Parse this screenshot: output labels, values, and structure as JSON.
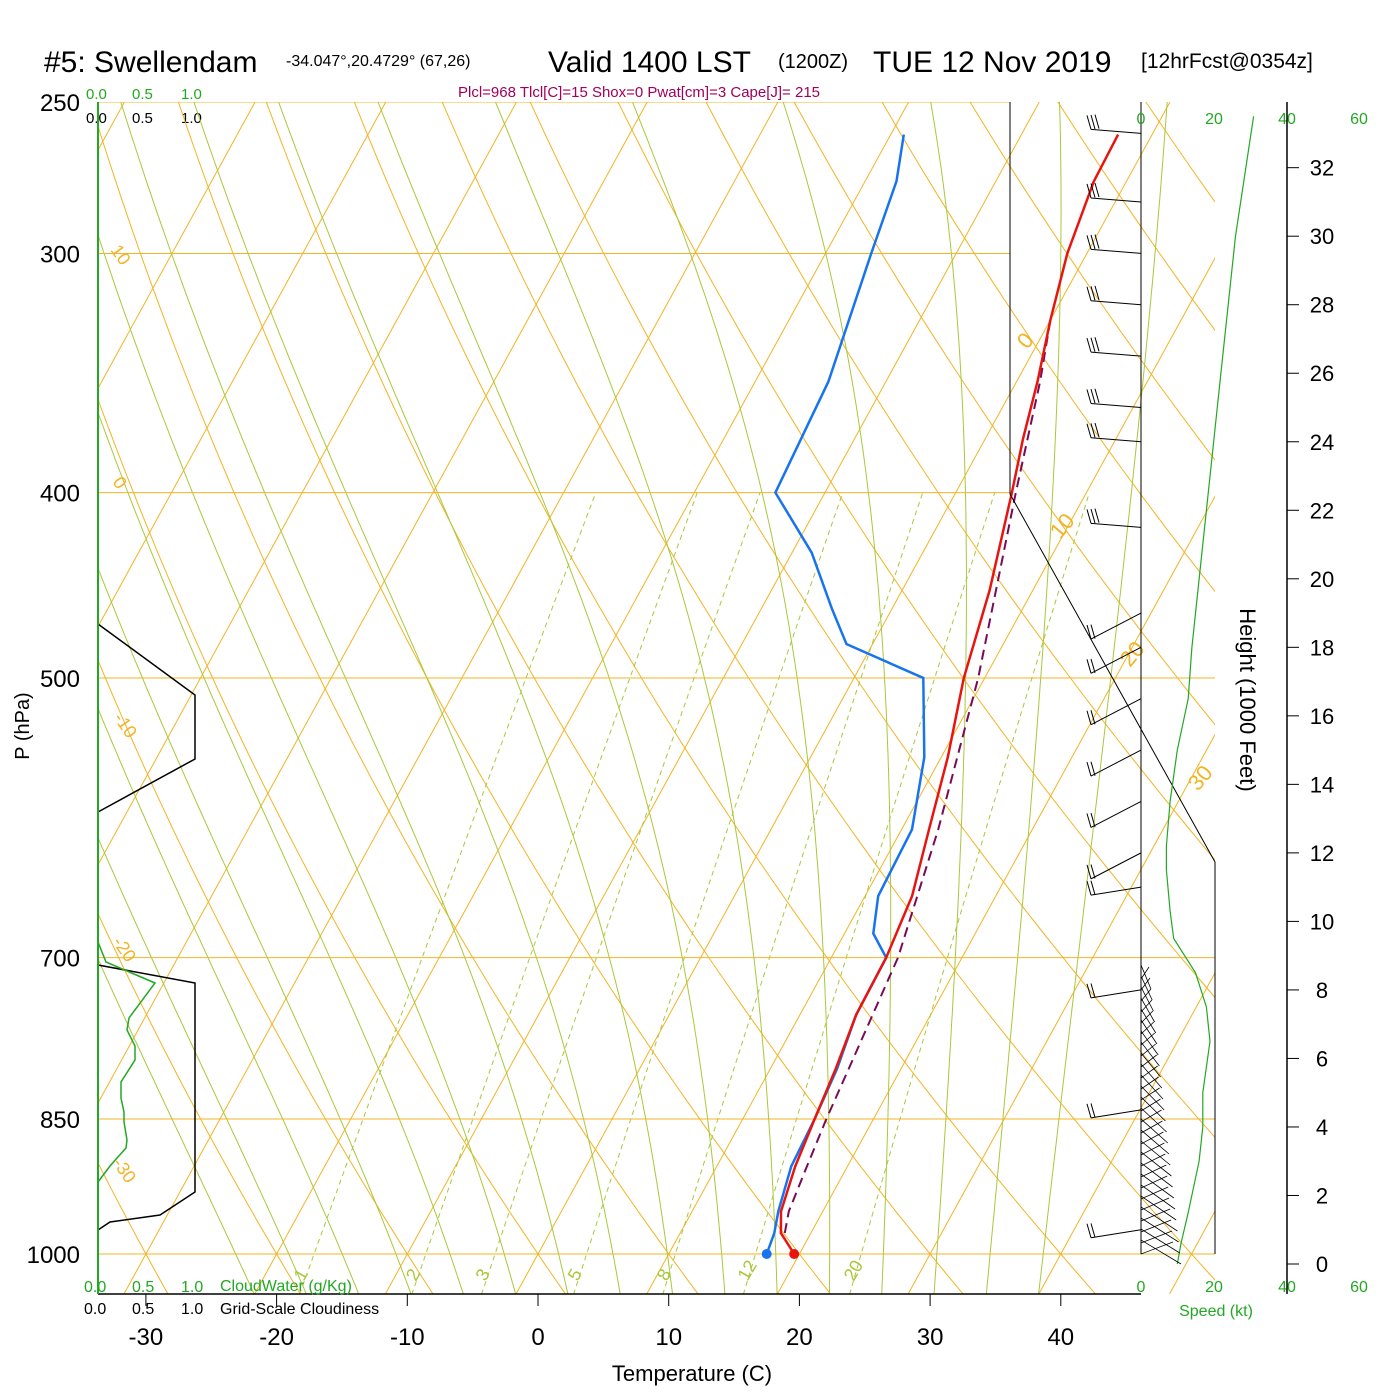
{
  "header": {
    "station": "#5: Swellendam",
    "coords": "-34.047°,20.4729° (67,26)",
    "valid": "Valid 1400 LST",
    "zulu": "(1200Z)",
    "date": "TUE 12 Nov 2019",
    "fcst": "[12hrFcst@0354z]",
    "indices": "Plcl=968 Tlcl[C]=15 Shox=0 Pwat[cm]=3 Cape[J]= 215"
  },
  "colors": {
    "temperature": "#e8140f",
    "dewpoint": "#1874ee",
    "parcel": "#7a0a55",
    "isotherm": "#f2b424",
    "dry_adiabat": "#f2b424",
    "moist_adiabat": "#a8c83c",
    "mixing_ratio": "#a8c83c",
    "green_labels": "#22a822",
    "indices_text": "#a0005a"
  },
  "scales": {
    "cloud_top": [
      "0.0",
      "0.5",
      "1.0"
    ],
    "cloud_top_black": [
      "0.0",
      "0.5",
      "1.0"
    ],
    "cloud_bottom_green": [
      "0.0",
      "0.5",
      "1.0"
    ],
    "cloud_bottom_black": [
      "0.0",
      "0.5",
      "1.0"
    ],
    "cloudwater_label": "CloudWater (g/Kg)",
    "cloudiness_label": "Grid-Scale Cloudiness",
    "speed_top": [
      "0",
      "20",
      "40",
      "60"
    ],
    "speed_bottom": [
      "0",
      "20",
      "40",
      "60"
    ],
    "speed_label": "Speed (kt)"
  },
  "chart_data": {
    "type": "skew-t",
    "xlabel": "Temperature (C)",
    "ylabel": "P (hPa)",
    "y2label": "Height (1000 Feet)",
    "pressure_ticks": [
      250,
      300,
      400,
      500,
      700,
      850,
      1000
    ],
    "temp_ticks": [
      -30,
      -20,
      -10,
      0,
      10,
      20,
      30,
      40
    ],
    "height_ticks": [
      0,
      2,
      4,
      6,
      8,
      10,
      12,
      14,
      16,
      18,
      20,
      22,
      24,
      26,
      28,
      30,
      32
    ],
    "isotherm_labels": [
      "10",
      "0",
      "-10",
      "-20",
      "-30"
    ],
    "dry_adiabat_labels": [
      "0",
      "10",
      "20",
      "30"
    ],
    "mixing_ratio_labels": [
      "1",
      "2",
      "3",
      "5",
      "8",
      "12",
      "20"
    ],
    "temperature_profile": [
      {
        "p": 1000,
        "t": 19.6
      },
      {
        "p": 975,
        "t": 17.7
      },
      {
        "p": 950,
        "t": 16.8
      },
      {
        "p": 900,
        "t": 16.0
      },
      {
        "p": 850,
        "t": 15.5
      },
      {
        "p": 800,
        "t": 15.0
      },
      {
        "p": 750,
        "t": 14.3
      },
      {
        "p": 700,
        "t": 14.2
      },
      {
        "p": 650,
        "t": 13.6
      },
      {
        "p": 600,
        "t": 12.1
      },
      {
        "p": 550,
        "t": 10.5
      },
      {
        "p": 500,
        "t": 8.4
      },
      {
        "p": 450,
        "t": 6.7
      },
      {
        "p": 400,
        "t": 4.3
      },
      {
        "p": 375,
        "t": 2.9
      },
      {
        "p": 350,
        "t": 1.6
      },
      {
        "p": 325,
        "t": 0.0
      },
      {
        "p": 300,
        "t": -1.5
      },
      {
        "p": 275,
        "t": -2.5
      },
      {
        "p": 260,
        "t": -2.6
      }
    ],
    "dewpoint_profile": [
      {
        "p": 1000,
        "t": 17.5
      },
      {
        "p": 975,
        "t": 17.2
      },
      {
        "p": 950,
        "t": 16.6
      },
      {
        "p": 900,
        "t": 15.7
      },
      {
        "p": 850,
        "t": 15.5
      },
      {
        "p": 800,
        "t": 15.1
      },
      {
        "p": 750,
        "t": 14.3
      },
      {
        "p": 700,
        "t": 14.2
      },
      {
        "p": 680,
        "t": 12.2
      },
      {
        "p": 650,
        "t": 11.0
      },
      {
        "p": 600,
        "t": 10.8
      },
      {
        "p": 550,
        "t": 8.7
      },
      {
        "p": 500,
        "t": 5.3
      },
      {
        "p": 480,
        "t": -2.0
      },
      {
        "p": 460,
        "t": -4.6
      },
      {
        "p": 430,
        "t": -8.5
      },
      {
        "p": 400,
        "t": -13.8
      },
      {
        "p": 350,
        "t": -14.4
      },
      {
        "p": 300,
        "t": -16.5
      },
      {
        "p": 275,
        "t": -17.6
      },
      {
        "p": 260,
        "t": -19.0
      }
    ],
    "parcel_profile": [
      {
        "p": 975,
        "t": 18.0
      },
      {
        "p": 950,
        "t": 17.4
      },
      {
        "p": 900,
        "t": 16.9
      },
      {
        "p": 850,
        "t": 16.4
      },
      {
        "p": 800,
        "t": 16.0
      },
      {
        "p": 700,
        "t": 15.1
      },
      {
        "p": 600,
        "t": 12.8
      },
      {
        "p": 500,
        "t": 9.5
      },
      {
        "p": 400,
        "t": 4.6
      },
      {
        "p": 350,
        "t": 1.8
      },
      {
        "p": 325,
        "t": 0.0
      }
    ],
    "wind_speed_profile": [
      {
        "h": 0.0,
        "s": 10
      },
      {
        "h": 0.6,
        "s": 11
      },
      {
        "h": 1.5,
        "s": 13
      },
      {
        "h": 3.0,
        "s": 16
      },
      {
        "h": 4.0,
        "s": 17
      },
      {
        "h": 5.0,
        "s": 17
      },
      {
        "h": 6.5,
        "s": 19
      },
      {
        "h": 7.5,
        "s": 18
      },
      {
        "h": 8.5,
        "s": 15
      },
      {
        "h": 9.5,
        "s": 9
      },
      {
        "h": 10.3,
        "s": 8
      },
      {
        "h": 11.5,
        "s": 7
      },
      {
        "h": 12.2,
        "s": 7
      },
      {
        "h": 13.5,
        "s": 8
      },
      {
        "h": 15.0,
        "s": 10
      },
      {
        "h": 16.5,
        "s": 13
      },
      {
        "h": 18.0,
        "s": 14
      },
      {
        "h": 22.0,
        "s": 18
      },
      {
        "h": 26.0,
        "s": 22
      },
      {
        "h": 30.0,
        "s": 26
      },
      {
        "h": 33.5,
        "s": 31
      }
    ],
    "wind_barb_heights": [
      1,
      4.5,
      8,
      11,
      12,
      13.5,
      15,
      16.5,
      18,
      19,
      21.5,
      24,
      25,
      26.5,
      28,
      29.5,
      31,
      33
    ]
  }
}
